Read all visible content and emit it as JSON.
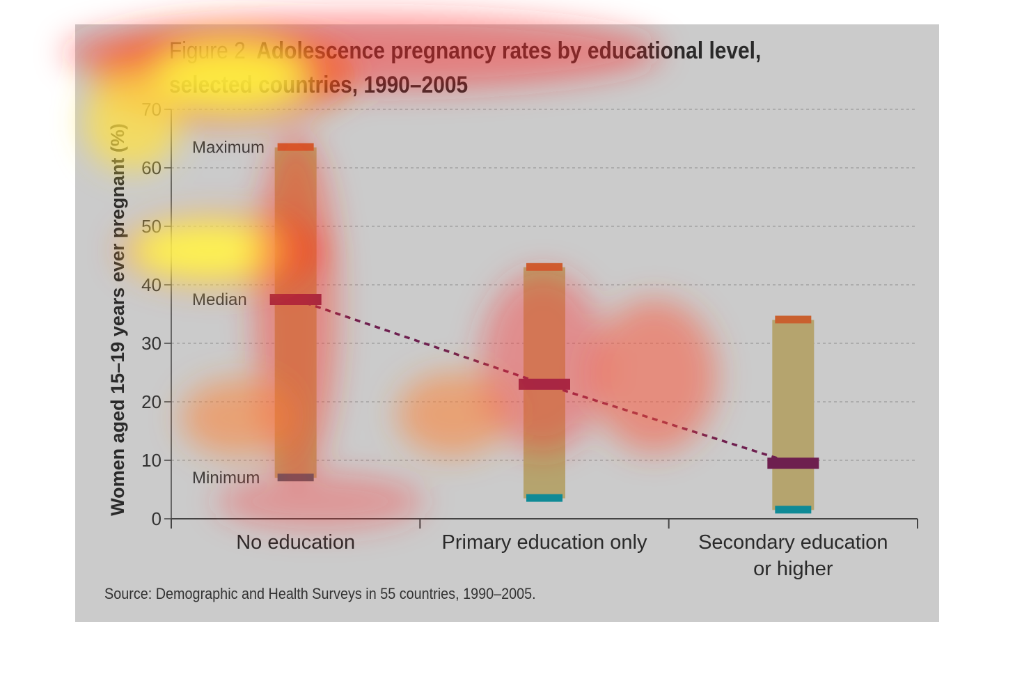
{
  "chart_data": {
    "type": "range-bar",
    "figure_label": "Figure 2",
    "title": "Adolescence pregnancy rates by educational level, selected countries, 1990–2005",
    "ylabel": "Women aged 15–19 years ever pregnant (%)",
    "ylim": [
      0,
      70
    ],
    "yticks": [
      "0",
      "10",
      "20",
      "30",
      "40",
      "50",
      "60",
      "70"
    ],
    "grid": true,
    "categories": [
      "No education",
      "Primary education only",
      "Secondary education or higher"
    ],
    "category_lines": [
      [
        "No education"
      ],
      [
        "Primary education only"
      ],
      [
        "Secondary education",
        "or higher"
      ]
    ],
    "maximum": [
      63.5,
      43,
      34
    ],
    "median": [
      37.5,
      23,
      9.5
    ],
    "minimum": [
      7,
      3.5,
      1.5
    ],
    "legend": {
      "maximum": "Maximum",
      "median": "Median",
      "minimum": "Minimum"
    },
    "colors": {
      "bar": "#b5a46e",
      "maximum": "#c9602e",
      "median": "#6e1f4f",
      "minimum": "#0f8a96",
      "min_first": "#445a6a",
      "median_line": "#6e1f4f"
    }
  },
  "source": "Source: Demographic and Health Surveys in 55 countries, 1990–2005."
}
